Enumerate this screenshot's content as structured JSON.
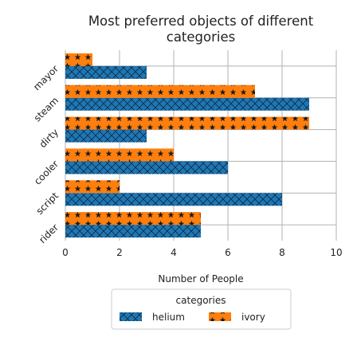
{
  "chart_data": {
    "type": "bar",
    "orientation": "horizontal",
    "title": "Most preferred objects of different categories",
    "title_lines": [
      "Most preferred objects of different",
      "categories"
    ],
    "xlabel": "Number of People",
    "ylabel": "",
    "categories": [
      "rider",
      "script",
      "cooler",
      "dirty",
      "steam",
      "mayor"
    ],
    "series": [
      {
        "name": "helium",
        "values": [
          5,
          8,
          6,
          3,
          9,
          3
        ]
      },
      {
        "name": "ivory",
        "values": [
          5,
          2,
          4,
          9,
          7,
          1
        ]
      }
    ],
    "xlim": [
      0,
      10
    ],
    "xticks": [
      "0",
      "2",
      "4",
      "6",
      "8",
      "10"
    ],
    "grid": true,
    "legend": {
      "title": "categories",
      "placement": "bottom-center"
    },
    "colors": {
      "helium": "#1f77b4",
      "ivory": "#ff7f0e"
    }
  }
}
